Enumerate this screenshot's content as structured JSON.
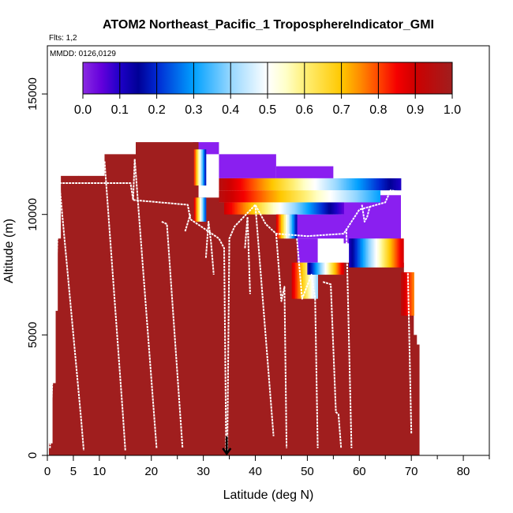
{
  "chart_data": {
    "type": "heatmap",
    "title": "ATOM2 Northeast_Pacific_1 TroposphereIndicator_GMI",
    "flights_label": "Flts: 1,2",
    "dates_label": "MMDD: 0126,0129",
    "xlabel": "Latitude (deg N)",
    "ylabel": "Altitude (m)",
    "xlim": [
      0,
      85
    ],
    "ylim": [
      0,
      17000
    ],
    "x_ticks": [
      0,
      5,
      10,
      20,
      30,
      40,
      50,
      60,
      70,
      80
    ],
    "y_ticks": [
      0,
      5000,
      10000,
      15000
    ],
    "colorbar": {
      "ticks": [
        "0.0",
        "0.1",
        "0.2",
        "0.3",
        "0.4",
        "0.5",
        "0.6",
        "0.7",
        "0.8",
        "0.9",
        "1.0"
      ],
      "range": [
        0,
        1
      ]
    },
    "marker_latitude": 34.5,
    "troposphere_color": "#a01e1e",
    "stratosphere_color": "#8a1ff0",
    "troposphere_columns": [
      {
        "x0": 0.3,
        "x1": 1.2,
        "top": 500
      },
      {
        "x0": 1.0,
        "x1": 1.6,
        "top": 3000
      },
      {
        "x0": 1.6,
        "x1": 2.1,
        "top": 6000
      },
      {
        "x0": 2.0,
        "x1": 2.8,
        "top": 9000
      },
      {
        "x0": 2.6,
        "x1": 6.0,
        "top": 11600
      },
      {
        "x0": 6.0,
        "x1": 11.0,
        "top": 11600
      },
      {
        "x0": 11.0,
        "x1": 17.0,
        "top": 12500
      },
      {
        "x0": 17.0,
        "x1": 29.0,
        "top": 13000
      },
      {
        "x0": 29.0,
        "x1": 33.0,
        "top": 10700
      },
      {
        "x0": 33.0,
        "x1": 42.0,
        "top": 10500
      },
      {
        "x0": 42.0,
        "x1": 45.5,
        "top": 10000
      },
      {
        "x0": 45.5,
        "x1": 48.0,
        "top": 9000
      },
      {
        "x0": 48.0,
        "x1": 52.0,
        "top": 6500
      },
      {
        "x0": 52.0,
        "x1": 57.0,
        "top": 7500
      },
      {
        "x0": 57.0,
        "x1": 58.5,
        "top": 8000
      },
      {
        "x0": 58.5,
        "x1": 68.5,
        "top": 8000
      },
      {
        "x0": 68.5,
        "x1": 69.3,
        "top": 7300
      },
      {
        "x0": 69.3,
        "x1": 69.8,
        "top": 6800
      },
      {
        "x0": 69.8,
        "x1": 70.4,
        "top": 6000
      },
      {
        "x0": 70.4,
        "x1": 71.0,
        "top": 5000
      },
      {
        "x0": 71.0,
        "x1": 71.5,
        "top": 4600
      }
    ],
    "stratosphere_blocks": [
      {
        "x0": 28.0,
        "x1": 33.0,
        "y0": 12500,
        "y1": 13000
      },
      {
        "x0": 33.0,
        "x1": 44.0,
        "y0": 11500,
        "y1": 12500
      },
      {
        "x0": 44.0,
        "x1": 55.0,
        "y0": 11500,
        "y1": 12000
      },
      {
        "x0": 42.0,
        "x1": 68.0,
        "y0": 9000,
        "y1": 10000
      },
      {
        "x0": 47.0,
        "x1": 52.0,
        "y0": 8000,
        "y1": 9000
      },
      {
        "x0": 57.0,
        "x1": 68.0,
        "y0": 8800,
        "y1": 10800
      }
    ],
    "gradient_bands": [
      {
        "x0": 28.2,
        "x1": 30.5,
        "y0": 11200,
        "y1": 12700,
        "v0": 0.85,
        "v1": 0.15
      },
      {
        "x0": 28.2,
        "x1": 30.5,
        "y0": 9700,
        "y1": 10700,
        "v0": 0.9,
        "v1": 0.2
      },
      {
        "x0": 33.0,
        "x1": 68.0,
        "y0": 11000,
        "y1": 11500,
        "v0": 0.95,
        "v1": 0.1
      },
      {
        "x0": 33.0,
        "x1": 64.0,
        "y0": 10500,
        "y1": 11000,
        "v0": 0.95,
        "v1": 0.3
      },
      {
        "x0": 34.0,
        "x1": 57.0,
        "y0": 10000,
        "y1": 10500,
        "v0": 0.9,
        "v1": 0.05
      },
      {
        "x0": 44.0,
        "x1": 48.0,
        "y0": 9000,
        "y1": 10000,
        "v0": 0.9,
        "v1": 0.15
      },
      {
        "x0": 47.0,
        "x1": 52.0,
        "y0": 6500,
        "y1": 8000,
        "v0": 0.9,
        "v1": 0.4
      },
      {
        "x0": 50.0,
        "x1": 57.0,
        "y0": 7500,
        "y1": 8000,
        "v0": 0.1,
        "v1": 0.9
      },
      {
        "x0": 58.0,
        "x1": 68.5,
        "y0": 7800,
        "y1": 9000,
        "v0": 0.1,
        "v1": 0.9
      },
      {
        "x0": 68.0,
        "x1": 70.5,
        "y0": 5800,
        "y1": 7600,
        "v0": 0.95,
        "v1": 0.75
      }
    ],
    "flight_track": [
      [
        0.5,
        300
      ],
      [
        2.3,
        11300
      ],
      [
        5,
        11300
      ],
      [
        7,
        11300
      ],
      [
        16,
        11300
      ],
      [
        16.5,
        10600
      ],
      [
        27,
        10400
      ],
      [
        27.5,
        9800
      ],
      [
        33,
        9000
      ],
      [
        34,
        8600
      ],
      [
        34.4,
        200
      ]
    ],
    "flight_track_2": [
      [
        34.6,
        200
      ],
      [
        35,
        9000
      ],
      [
        36,
        9500
      ],
      [
        40,
        10400
      ],
      [
        42,
        9600
      ],
      [
        44,
        9200
      ],
      [
        50,
        9100
      ],
      [
        57,
        9200
      ],
      [
        60,
        10200
      ],
      [
        65,
        10500
      ],
      [
        66,
        11000
      ],
      [
        69,
        10900
      ],
      [
        70,
        900
      ]
    ],
    "profile_segments": [
      [
        [
          2.3,
          11300
        ],
        [
          6.5,
          1500
        ],
        [
          7,
          200
        ]
      ],
      [
        [
          11,
          12200
        ],
        [
          14.5,
          1800
        ],
        [
          15,
          200
        ]
      ],
      [
        [
          16.5,
          10600
        ],
        [
          16.8,
          12300
        ],
        [
          21,
          300
        ]
      ],
      [
        [
          22,
          9700
        ],
        [
          23,
          9600
        ],
        [
          26,
          300
        ]
      ],
      [
        [
          26.5,
          9300
        ],
        [
          27.5,
          10000
        ]
      ],
      [
        [
          30.5,
          8200
        ],
        [
          31,
          9700
        ],
        [
          31.5,
          8800
        ],
        [
          32,
          7500
        ]
      ],
      [
        [
          38,
          8600
        ],
        [
          38.5,
          9900
        ],
        [
          39,
          6700
        ]
      ],
      [
        [
          40,
          10400
        ],
        [
          43.5,
          800
        ]
      ],
      [
        [
          44,
          9200
        ],
        [
          45,
          6400
        ],
        [
          45.6,
          7000
        ],
        [
          46,
          300
        ]
      ],
      [
        [
          48,
          9000
        ],
        [
          49,
          6500
        ],
        [
          50.8,
          7500
        ],
        [
          51.5,
          6500
        ],
        [
          52,
          300
        ]
      ],
      [
        [
          53,
          7200
        ],
        [
          54.5,
          7100
        ],
        [
          55.5,
          1800
        ],
        [
          56,
          1700
        ],
        [
          56.5,
          300
        ]
      ],
      [
        [
          57.5,
          9400
        ],
        [
          58.5,
          300
        ]
      ],
      [
        [
          60.5,
          10400
        ],
        [
          61,
          9700
        ],
        [
          61.5,
          9900
        ],
        [
          62,
          10300
        ]
      ]
    ]
  }
}
